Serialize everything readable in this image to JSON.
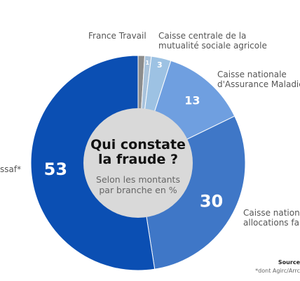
{
  "chart_data": {
    "type": "pie",
    "title": "Qui constate la fraude ?",
    "subtitle": "Selon les montants par branche en %",
    "slices": [
      {
        "label": "France Travail",
        "value": 1,
        "value_label": "",
        "color": "#8c8c8c"
      },
      {
        "label": "",
        "value": 1,
        "value_label": "1",
        "color": "#a9c3dc"
      },
      {
        "label": "Caisse centrale de la mutualité sociale agricole",
        "value": 3,
        "value_label": "3",
        "color": "#9dc2e3"
      },
      {
        "label": "Caisse nationale d'Assurance Maladie",
        "value": 13,
        "value_label": "13",
        "color": "#6f9fe0"
      },
      {
        "label": "Caisse national allocations fam",
        "value": 30,
        "value_label": "30",
        "color": "#3f77c7"
      },
      {
        "label": "ssaf*",
        "value": 53,
        "value_label": "53",
        "color": "#0b4fb3"
      }
    ]
  },
  "labels": {
    "france_travail": "France Travail",
    "msa_line1": "Caisse centrale de la",
    "msa_line2": "mutualité sociale agricole",
    "cnam_line1": "Caisse nationale",
    "cnam_line2": "d'Assurance Maladie",
    "caf_line1": "Caisse national",
    "caf_line2": "allocations fam",
    "urssaf": "ssaf*"
  },
  "center": {
    "title_line1": "Qui constate",
    "title_line2": "la fraude ?",
    "subtitle_line1": "Selon les montants",
    "subtitle_line2": "par branche en %"
  },
  "footer": {
    "source": "Source",
    "footnote": "*dont Agirc/Arrc"
  }
}
